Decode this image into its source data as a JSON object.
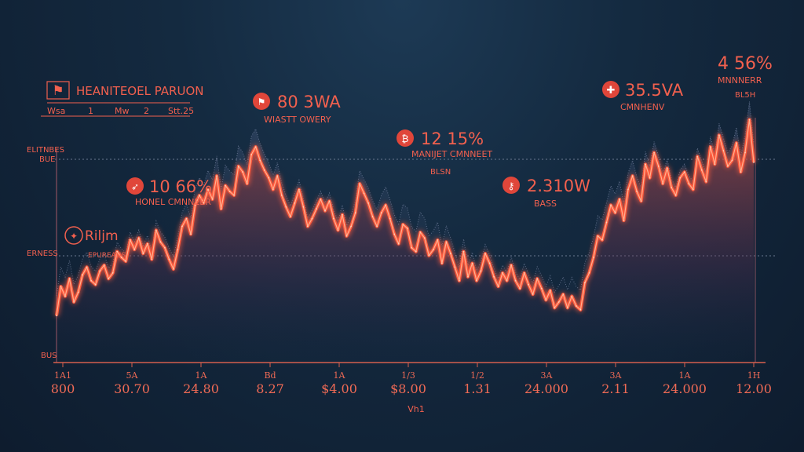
{
  "colors": {
    "background": "#142a40",
    "accent": "#f2604e",
    "line_glow": "#ff5a3c",
    "line_core": "#ffb090",
    "grid": "#6a7890"
  },
  "legend": {
    "icon": "flag-icon",
    "title": "HEANITEOEL PARUON",
    "items": [
      "Wsa",
      "1",
      "Mw",
      "2",
      "Stt.25"
    ]
  },
  "y_axis_labels": [
    "ELITNBES",
    "BUE",
    "ERNESS",
    "BUS"
  ],
  "side_badge": {
    "icon": "stamp-icon",
    "value": "Riljm",
    "sub": "EPUREAUS"
  },
  "annotations": [
    {
      "icon": "runner-icon",
      "value": "10 66%",
      "label": "HONEL CMNNEER"
    },
    {
      "icon": "flag-icon",
      "value": "80 3WA",
      "label": "WIASTT OWERY"
    },
    {
      "icon": "bitcoin-icon",
      "value": "12 15%",
      "label": "MANIJET CMNNEET",
      "sub": "BLSN"
    },
    {
      "icon": "key-icon",
      "value": "2.310W",
      "label": "BASS"
    },
    {
      "icon": "plus-icon",
      "value": "35.5VA",
      "label": "CMNHENV"
    },
    {
      "icon": "",
      "value": "4 56%",
      "label": "MNNNERR",
      "sub": "BL5H"
    }
  ],
  "chart_data": {
    "type": "line",
    "title": "HEANITEOEL PARUON",
    "xlabel": "Vh1",
    "ylabel": "",
    "grid": true,
    "ylim": [
      0,
      100
    ],
    "x_tick_labels_top": [
      "1A1",
      "5A",
      "1A",
      "Bd",
      "1A",
      "1/3",
      "1/2",
      "3A",
      "3A",
      "1A",
      "1H"
    ],
    "x_tick_labels_bottom": [
      "800",
      "30.70",
      "24.80",
      "8.27",
      "$4.00",
      "$8.00",
      "1.31",
      "24.000",
      "2.11",
      "24.000",
      "12.00"
    ],
    "series": [
      {
        "values": [
          8,
          23,
          18,
          27,
          15,
          20,
          29,
          33,
          26,
          24,
          31,
          34,
          27,
          30,
          41,
          38,
          36,
          47,
          42,
          48,
          40,
          45,
          37,
          52,
          46,
          43,
          37,
          32,
          42,
          54,
          58,
          50,
          65,
          70,
          66,
          73,
          68,
          80,
          63,
          75,
          72,
          70,
          85,
          82,
          76,
          91,
          95,
          88,
          83,
          79,
          73,
          80,
          70,
          64,
          59,
          66,
          73,
          64,
          54,
          58,
          63,
          68,
          62,
          67,
          58,
          52,
          60,
          49,
          54,
          61,
          76,
          71,
          66,
          59,
          54,
          61,
          65,
          58,
          50,
          45,
          55,
          53,
          43,
          41,
          51,
          48,
          39,
          42,
          47,
          35,
          46,
          40,
          33,
          26,
          41,
          28,
          35,
          26,
          31,
          40,
          35,
          28,
          23,
          30,
          26,
          34,
          26,
          22,
          30,
          24,
          19,
          27,
          22,
          16,
          21,
          12,
          15,
          19,
          12,
          18,
          13,
          11,
          25,
          30,
          38,
          49,
          47,
          56,
          65,
          61,
          68,
          57,
          73,
          80,
          72,
          67,
          86,
          79,
          92,
          85,
          76,
          84,
          74,
          70,
          79,
          82,
          76,
          73,
          90,
          83,
          77,
          95,
          86,
          101,
          93,
          85,
          88,
          97,
          82,
          92,
          109,
          87
        ]
      }
    ]
  }
}
